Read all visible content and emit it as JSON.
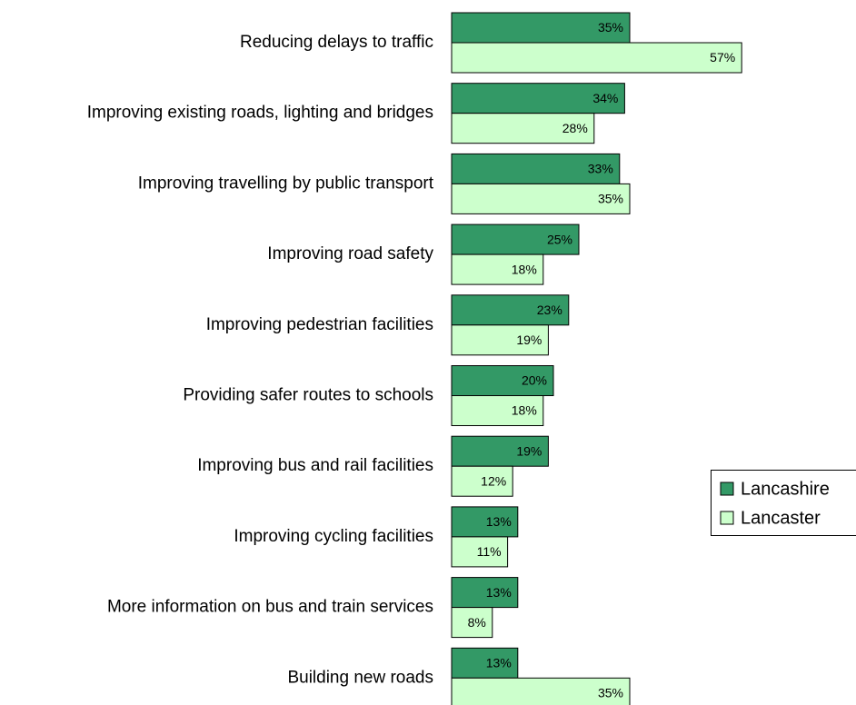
{
  "chart_data": {
    "type": "bar",
    "orientation": "horizontal",
    "categories": [
      "Reducing delays to traffic",
      "Improving existing roads, lighting and bridges",
      "Improving travelling by public transport",
      "Improving road safety",
      "Improving pedestrian facilities",
      "Providing safer routes to schools",
      "Improving bus and rail facilities",
      "Improving cycling facilities",
      "More information on bus and train services",
      "Building new roads"
    ],
    "series": [
      {
        "name": "Lancashire",
        "color": "#339966",
        "values": [
          35,
          34,
          33,
          25,
          23,
          20,
          19,
          13,
          13,
          13
        ],
        "value_labels": [
          "35%",
          "34%",
          "33%",
          "25%",
          "23%",
          "20%",
          "19%",
          "13%",
          "13%",
          "13%"
        ]
      },
      {
        "name": "Lancaster",
        "color": "#ccffcc",
        "values": [
          57,
          28,
          35,
          18,
          19,
          18,
          12,
          11,
          8,
          35
        ],
        "value_labels": [
          "57%",
          "28%",
          "35%",
          "18%",
          "19%",
          "18%",
          "12%",
          "11%",
          "8%",
          "35%"
        ]
      }
    ],
    "legend": "right"
  }
}
